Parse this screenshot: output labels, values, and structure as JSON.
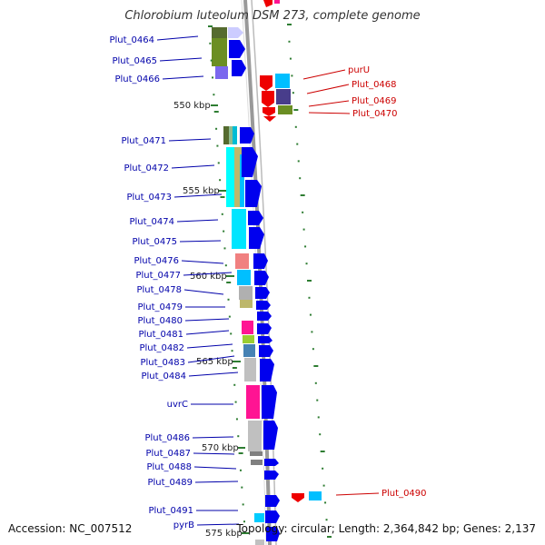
{
  "title": "Chlorobium luteolum DSM 273, complete genome",
  "accession": "Accession: NC_007512",
  "topology": "Topology: circular; Length: 2,364,842 bp; Genes: 2,137",
  "colors": {
    "left_label": "#0000aa",
    "right_label": "#cc0000",
    "backbone": "#888888",
    "tick": "#2e7d32",
    "gene_forward": "#0000ee",
    "gene_reverse": "#ee0000"
  },
  "kbp_labels": [
    "550 kbp",
    "555 kbp",
    "560 kbp",
    "565 kbp",
    "570 kbp",
    "575 kbp"
  ],
  "left_genes": [
    "Plut_0464",
    "Plut_0465",
    "Plut_0466",
    "Plut_0471",
    "Plut_0472",
    "Plut_0473",
    "Plut_0474",
    "Plut_0475",
    "Plut_0476",
    "Plut_0477",
    "Plut_0478",
    "Plut_0479",
    "Plut_0480",
    "Plut_0481",
    "Plut_0482",
    "Plut_0483",
    "Plut_0484",
    "uvrC",
    "Plut_0486",
    "Plut_0487",
    "Plut_0488",
    "Plut_0489",
    "Plut_0491",
    "pyrB"
  ],
  "right_genes": [
    "purU",
    "Plut_0468",
    "Plut_0469",
    "Plut_0470",
    "Plut_0490"
  ]
}
